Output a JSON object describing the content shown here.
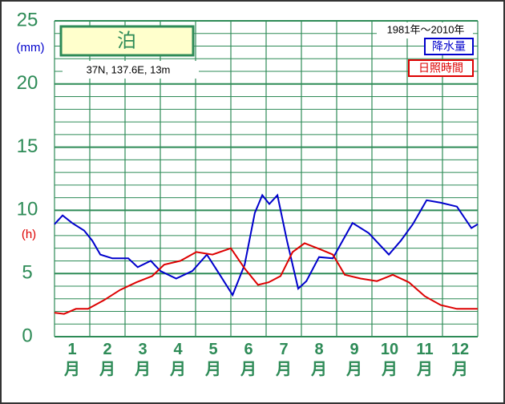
{
  "chart_data": {
    "type": "line",
    "title": "泊",
    "location": "37N, 137.6E, 13m",
    "period": "1981年〜2010年",
    "y_unit_left": "(mm)",
    "y_unit_right": "(h)",
    "categories": [
      "1月",
      "2月",
      "3月",
      "4月",
      "5月",
      "6月",
      "7月",
      "8月",
      "9月",
      "10月",
      "11月",
      "12月"
    ],
    "xlim": [
      0,
      12
    ],
    "xticks": [
      0,
      1,
      2,
      3,
      4,
      5,
      6,
      7,
      8,
      9,
      10,
      11,
      12
    ],
    "ylim": [
      0,
      25
    ],
    "yticks": [
      0,
      5,
      10,
      15,
      20,
      25
    ],
    "minor_yticks": [
      1,
      2,
      3,
      4,
      6,
      7,
      8,
      9,
      11,
      12,
      13,
      14,
      16,
      17,
      18,
      19,
      21,
      22,
      23,
      24
    ],
    "grid": true,
    "series": [
      {
        "name": "降水量",
        "color": "#0000cc",
        "x": [
          0,
          0.23,
          0.5,
          0.84,
          1.07,
          1.3,
          1.64,
          2.09,
          2.36,
          2.73,
          3.0,
          3.45,
          3.91,
          4.32,
          4.64,
          5.05,
          5.39,
          5.68,
          5.89,
          6.09,
          6.32,
          6.59,
          6.91,
          7.14,
          7.5,
          7.89,
          8.11,
          8.45,
          8.91,
          9.48,
          9.82,
          10.16,
          10.55,
          10.95,
          11.41,
          11.82,
          12
        ],
        "values": [
          8.9,
          9.6,
          9.0,
          8.4,
          7.6,
          6.5,
          6.2,
          6.2,
          5.5,
          6.0,
          5.2,
          4.6,
          5.2,
          6.5,
          5.1,
          3.3,
          5.7,
          9.8,
          11.2,
          10.5,
          11.2,
          7.6,
          3.8,
          4.4,
          6.3,
          6.2,
          7.3,
          9.0,
          8.2,
          6.5,
          7.6,
          8.9,
          10.8,
          10.6,
          10.3,
          8.6,
          8.9
        ]
      },
      {
        "name": "日照時間",
        "color": "#dd0000",
        "x": [
          0,
          0.27,
          0.61,
          0.95,
          1.41,
          1.86,
          2.32,
          2.77,
          3.11,
          3.57,
          4.02,
          4.48,
          5.0,
          5.39,
          5.77,
          6.07,
          6.41,
          6.75,
          7.09,
          7.55,
          7.89,
          8.23,
          8.68,
          9.14,
          9.59,
          10.05,
          10.5,
          10.95,
          11.41,
          12
        ],
        "values": [
          1.9,
          1.8,
          2.2,
          2.2,
          2.9,
          3.7,
          4.3,
          4.8,
          5.7,
          6.0,
          6.7,
          6.5,
          7.0,
          5.4,
          4.1,
          4.3,
          4.8,
          6.7,
          7.4,
          6.9,
          6.5,
          4.9,
          4.6,
          4.4,
          4.9,
          4.3,
          3.2,
          2.5,
          2.2,
          2.2
        ]
      }
    ]
  }
}
